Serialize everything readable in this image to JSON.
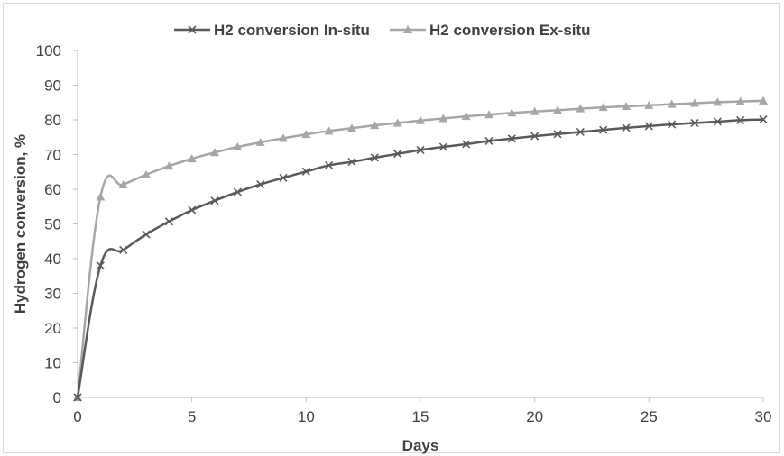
{
  "chart_data": {
    "type": "line",
    "title": "",
    "xlabel": "Days",
    "ylabel": "Hydrogen conversion, %",
    "xlim": [
      0,
      30
    ],
    "ylim": [
      0,
      100
    ],
    "xticks": [
      0,
      5,
      10,
      15,
      20,
      25,
      30
    ],
    "yticks": [
      0,
      10,
      20,
      30,
      40,
      50,
      60,
      70,
      80,
      90,
      100
    ],
    "grid": false,
    "legend_position": "top",
    "x": [
      0,
      1,
      2,
      3,
      4,
      5,
      6,
      7,
      8,
      9,
      10,
      11,
      12,
      13,
      14,
      15,
      16,
      17,
      18,
      19,
      20,
      21,
      22,
      23,
      24,
      25,
      26,
      27,
      28,
      29,
      30
    ],
    "series": [
      {
        "name": "H2 conversion In-situ",
        "color": "#595959",
        "marker": "x",
        "values": [
          0,
          38,
          42.5,
          47,
          50.7,
          54,
          56.7,
          59.2,
          61.4,
          63.3,
          65.1,
          66.9,
          67.9,
          69.1,
          70.2,
          71.3,
          72.2,
          73.0,
          73.9,
          74.6,
          75.3,
          75.9,
          76.5,
          77.1,
          77.7,
          78.2,
          78.7,
          79.1,
          79.5,
          79.9,
          80.1
        ]
      },
      {
        "name": "H2 conversion Ex-situ",
        "color": "#a6a6a6",
        "marker": "triangle",
        "values": [
          0,
          57.8,
          61.3,
          64.2,
          66.7,
          68.8,
          70.6,
          72.2,
          73.5,
          74.7,
          75.8,
          76.8,
          77.6,
          78.4,
          79.1,
          79.8,
          80.4,
          81.0,
          81.5,
          82.0,
          82.4,
          82.8,
          83.2,
          83.6,
          83.9,
          84.2,
          84.5,
          84.8,
          85.1,
          85.3,
          85.5
        ]
      }
    ]
  }
}
